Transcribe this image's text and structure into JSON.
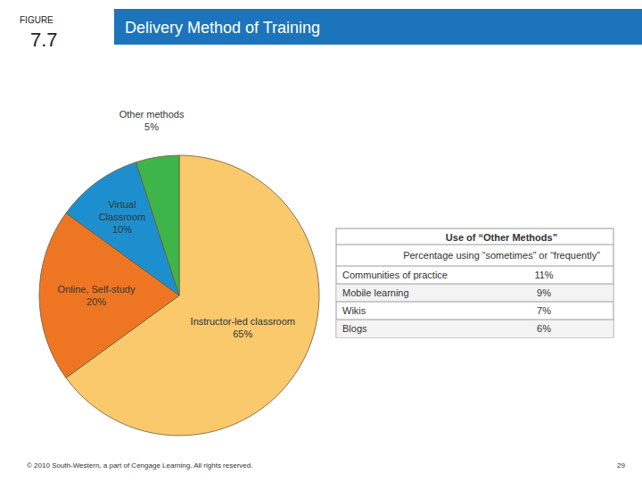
{
  "slide": {
    "figure_label": "FIGURE",
    "figure_number": "7.7",
    "title": "Delivery Method of Training",
    "footer": "© 2010 South-Western, a part of Cengage Learning. All rights reserved.",
    "page_number": "29"
  },
  "chart_data": {
    "type": "pie",
    "categories": [
      "Instructor-led classroom",
      "Online, Self-study",
      "Virtual Classroom",
      "Other methods"
    ],
    "values": [
      65,
      20,
      10,
      5
    ],
    "value_labels": [
      "65%",
      "20%",
      "10%",
      "5%"
    ],
    "colors": [
      "#f9c96b",
      "#ee7623",
      "#1e8fce",
      "#3db54a"
    ],
    "data_labels": true
  },
  "table": {
    "title": "Use of “Other Methods”",
    "subtitle": "Percentage using “sometimes” or “frequently”",
    "rows": [
      [
        "Communities of practice",
        "11%"
      ],
      [
        "Mobile learning",
        "9%"
      ],
      [
        "Wikis",
        "7%"
      ],
      [
        "Blogs",
        "6%"
      ]
    ]
  }
}
